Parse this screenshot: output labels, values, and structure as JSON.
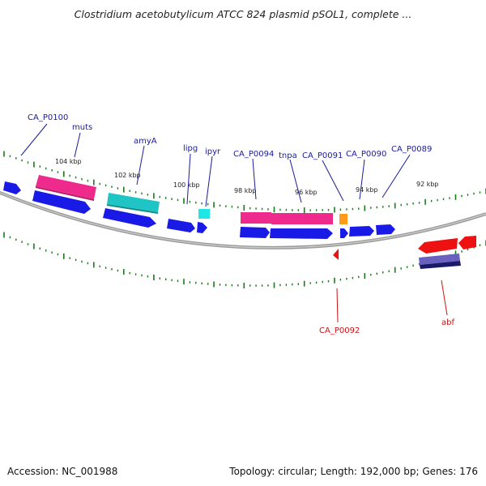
{
  "title": "Clostridium acetobutylicum ATCC 824 plasmid pSOL1, complete ...",
  "footer": {
    "accession": "Accession: NC_001988",
    "summary": "Topology: circular; Length: 192,000 bp; Genes: 176"
  },
  "colors": {
    "backbone": "#8a8a8a",
    "ticks": "#1a7a1a",
    "forward_cds": "#1a1ae6",
    "label_forward": "#1a1a9a",
    "label_reverse": "#cc1111",
    "reverse_cds": "#ee1111",
    "pink_feature": "#ee2a8c",
    "cyan_feature": "#1fc4c4",
    "orange_feature": "#ff9a1a",
    "purple_feature": "#6a60c0"
  },
  "ticks": [
    "104 kbp",
    "102 kbp",
    "100 kbp",
    "98 kbp",
    "96 kbp",
    "94 kbp",
    "92 kbp"
  ],
  "labels": {
    "forward": [
      "CA_P0100",
      "muts",
      "amyA",
      "lipg",
      "ipyr",
      "CA_P0094",
      "tnpa",
      "CA_P0091",
      "CA_P0090",
      "CA_P0089"
    ],
    "reverse": [
      "CA_P0092",
      "abf"
    ]
  }
}
